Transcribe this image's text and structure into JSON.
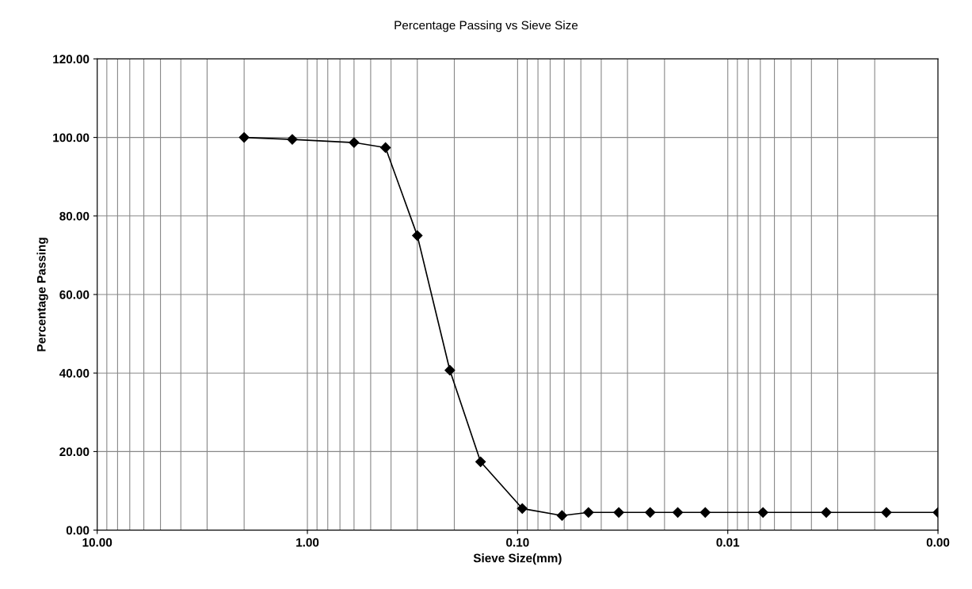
{
  "chart_data": {
    "type": "line",
    "title": "Percentage Passing vs Sieve Size",
    "xlabel": "Sieve Size(mm)",
    "ylabel": "Percentage Passing",
    "log": "x",
    "grid": true,
    "marker": "diamond",
    "line_style": "solid",
    "legend": false,
    "xlim": [
      10,
      0.001
    ],
    "xticks": [
      {
        "value": 10,
        "label": "10.00"
      },
      {
        "value": 1,
        "label": "1.00"
      },
      {
        "value": 0.1,
        "label": "0.10"
      },
      {
        "value": 0.01,
        "label": "0.01"
      },
      {
        "value": 0.001,
        "label": "0.00"
      }
    ],
    "ylim": [
      0,
      120
    ],
    "yticks": [
      {
        "value": 0,
        "label": "0.00"
      },
      {
        "value": 20,
        "label": "20.00"
      },
      {
        "value": 40,
        "label": "40.00"
      },
      {
        "value": 60,
        "label": "60.00"
      },
      {
        "value": 80,
        "label": "80.00"
      },
      {
        "value": 100,
        "label": "100.00"
      },
      {
        "value": 120,
        "label": "120.00"
      }
    ],
    "series": [
      {
        "color": "#000000",
        "x": [
          2.0,
          1.18,
          0.6,
          0.425,
          0.3,
          0.21,
          0.15,
          0.095,
          0.0615,
          0.046,
          0.033,
          0.0234,
          0.0173,
          0.0128,
          0.0068,
          0.0034,
          0.00176,
          0.001
        ],
        "values": [
          100,
          99.5,
          98.7,
          97.4,
          75,
          40.7,
          17.4,
          5.5,
          3.7,
          4.5,
          4.5,
          4.5,
          4.5,
          4.5,
          4.5,
          4.5,
          4.5,
          4.5
        ]
      }
    ]
  }
}
